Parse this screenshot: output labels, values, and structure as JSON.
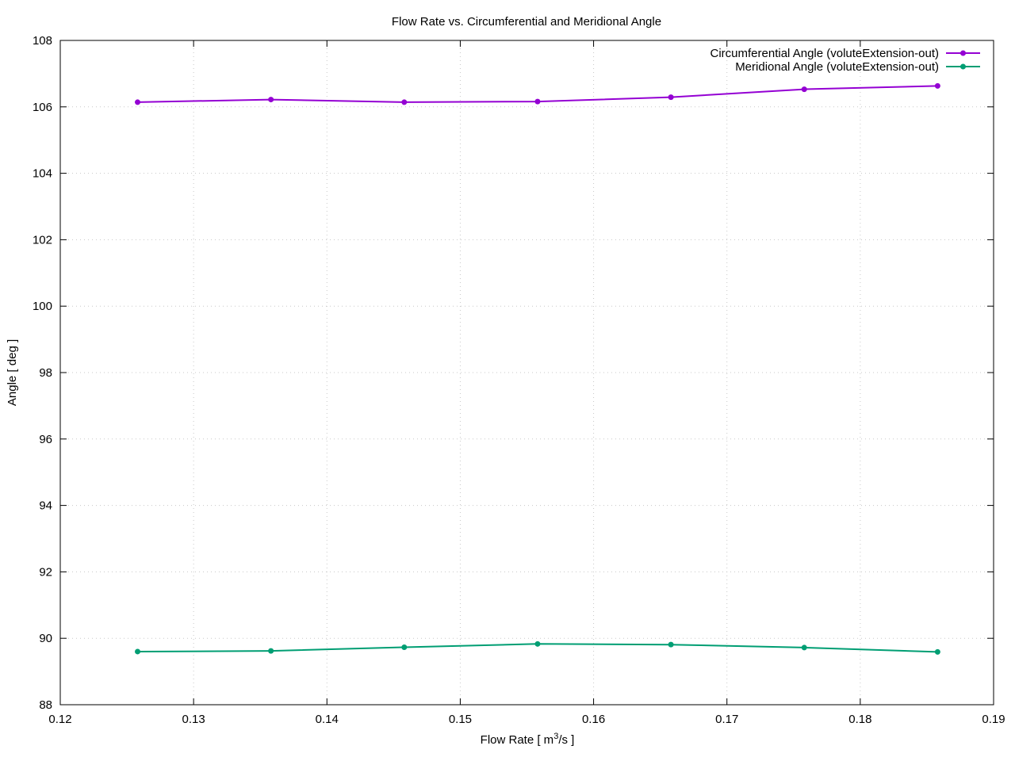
{
  "chart_data": {
    "type": "line",
    "title": "Flow Rate vs. Circumferential and Meridional Angle",
    "xlabel": "Flow Rate [ m",
    "xlabel_sup": "3",
    "xlabel_tail": "/s ]",
    "ylabel": "Angle [ deg ]",
    "xlim": [
      0.12,
      0.19
    ],
    "ylim": [
      88,
      108
    ],
    "xticks": [
      0.12,
      0.13,
      0.14,
      0.15,
      0.16,
      0.17,
      0.18,
      0.19
    ],
    "yticks": [
      88,
      90,
      92,
      94,
      96,
      98,
      100,
      102,
      104,
      106,
      108
    ],
    "xtick_labels": [
      "0.12",
      "0.13",
      "0.14",
      "0.15",
      "0.16",
      "0.17",
      "0.18",
      "0.19"
    ],
    "ytick_labels": [
      "88",
      "90",
      "92",
      "94",
      "96",
      "98",
      "100",
      "102",
      "104",
      "106",
      "108"
    ],
    "grid": true,
    "legend_position": "top-right",
    "x": [
      0.1258,
      0.1358,
      0.1458,
      0.1558,
      0.1658,
      0.1758,
      0.1858
    ],
    "series": [
      {
        "name": "Circumferential Angle (voluteExtension-out)",
        "color": "#9400d3",
        "values": [
          106.14,
          106.22,
          106.14,
          106.16,
          106.29,
          106.53,
          106.63
        ]
      },
      {
        "name": "Meridional Angle (voluteExtension-out)",
        "color": "#009e73",
        "values": [
          89.6,
          89.62,
          89.73,
          89.83,
          89.81,
          89.72,
          89.59
        ]
      }
    ]
  }
}
